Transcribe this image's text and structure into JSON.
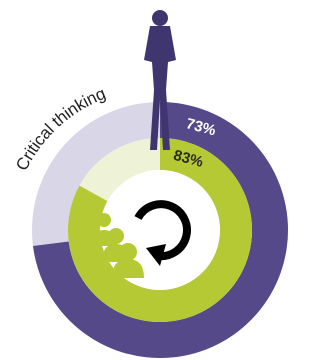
{
  "chart_data": {
    "type": "donut",
    "title": "Critical thinking",
    "series": [
      {
        "color": "#56498a",
        "track_color": "#d9d6e8",
        "values": [
          73
        ],
        "value_labels": [
          "73%"
        ],
        "label_color": "#ffffff"
      },
      {
        "color": "#b5c935",
        "track_color": "#eef2d6",
        "values": [
          83
        ],
        "value_labels": [
          "83%"
        ],
        "label_color": "#2a2a2a"
      }
    ],
    "ylim": [
      0,
      100
    ]
  }
}
